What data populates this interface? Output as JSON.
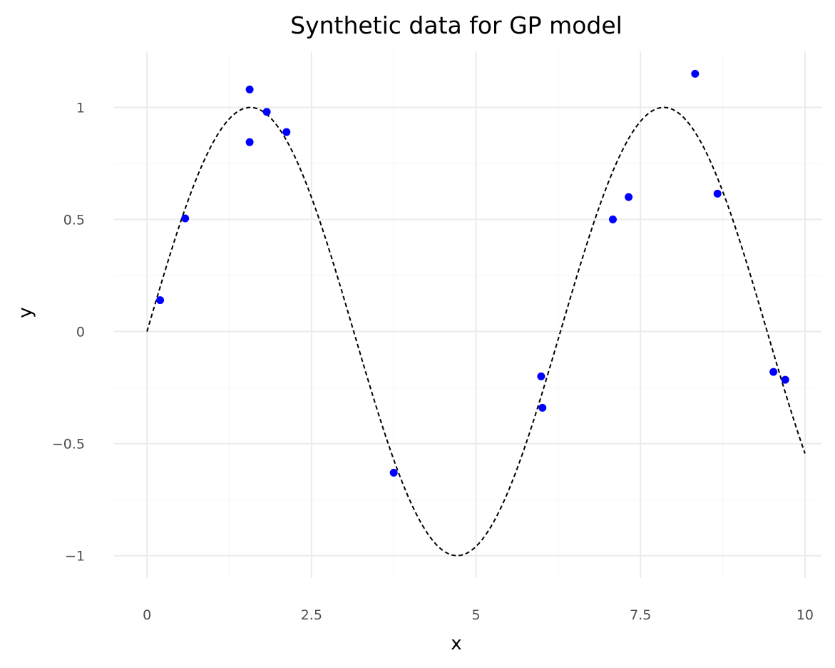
{
  "chart_data": {
    "type": "scatter",
    "title": "Synthetic data for GP model",
    "xlabel": "x",
    "ylabel": "y",
    "xlim": [
      -0.5,
      10.25
    ],
    "ylim": [
      -1.1,
      1.25
    ],
    "x_ticks": [
      0,
      2.5,
      5,
      7.5,
      10
    ],
    "x_tick_labels": [
      "0",
      "2.5",
      "5",
      "7.5",
      "10"
    ],
    "y_ticks": [
      -1,
      -0.5,
      0,
      0.5,
      1
    ],
    "y_tick_labels": [
      "−1",
      "−0.5",
      "0",
      "0.5",
      "1"
    ],
    "x_minor_ticks": [
      1.25,
      3.75,
      6.25,
      8.75
    ],
    "y_minor_ticks": [
      -0.75,
      -0.25,
      0.25,
      0.75
    ],
    "grid": true,
    "series": [
      {
        "kind": "points",
        "color": "#0000ff",
        "x": [
          0.2,
          0.58,
          1.56,
          1.56,
          1.82,
          2.12,
          3.75,
          5.99,
          6.01,
          7.08,
          7.32,
          8.33,
          8.67,
          9.52,
          9.7
        ],
        "y": [
          0.14,
          0.505,
          1.08,
          0.845,
          0.98,
          0.89,
          -0.63,
          -0.2,
          -0.34,
          0.5,
          0.6,
          1.15,
          0.615,
          -0.18,
          -0.215
        ]
      },
      {
        "kind": "line",
        "function": "sin(x)",
        "style": "dashed",
        "color": "#000000",
        "x_range": [
          0,
          10
        ]
      }
    ]
  }
}
